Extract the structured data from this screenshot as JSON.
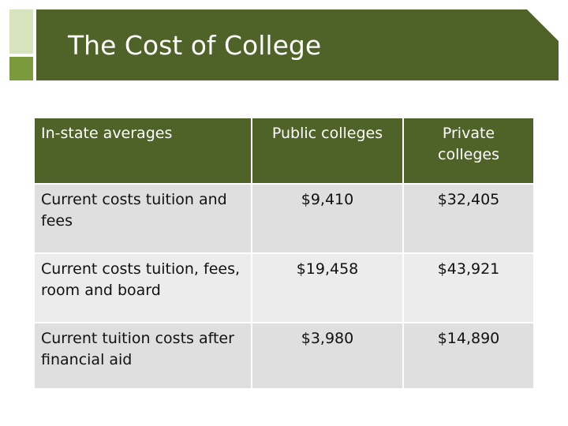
{
  "slide": {
    "title": "The Cost of College"
  },
  "table": {
    "headers": [
      "In-state averages",
      "Public colleges",
      "Private colleges"
    ],
    "rows": [
      {
        "label": "Current costs tuition and fees",
        "public": "$9,410",
        "private": "$32,405"
      },
      {
        "label": "Current costs tuition, fees, room and board",
        "public": "$19,458",
        "private": "$43,921"
      },
      {
        "label": "Current tuition costs after financial aid",
        "public": "$3,980",
        "private": "$14,890"
      }
    ]
  },
  "colors": {
    "header_green": "#4f6228",
    "accent_light": "#d6e3bc",
    "accent_dark": "#7a9a3c",
    "row_dark": "#dfdfdf",
    "row_light": "#ececec"
  }
}
